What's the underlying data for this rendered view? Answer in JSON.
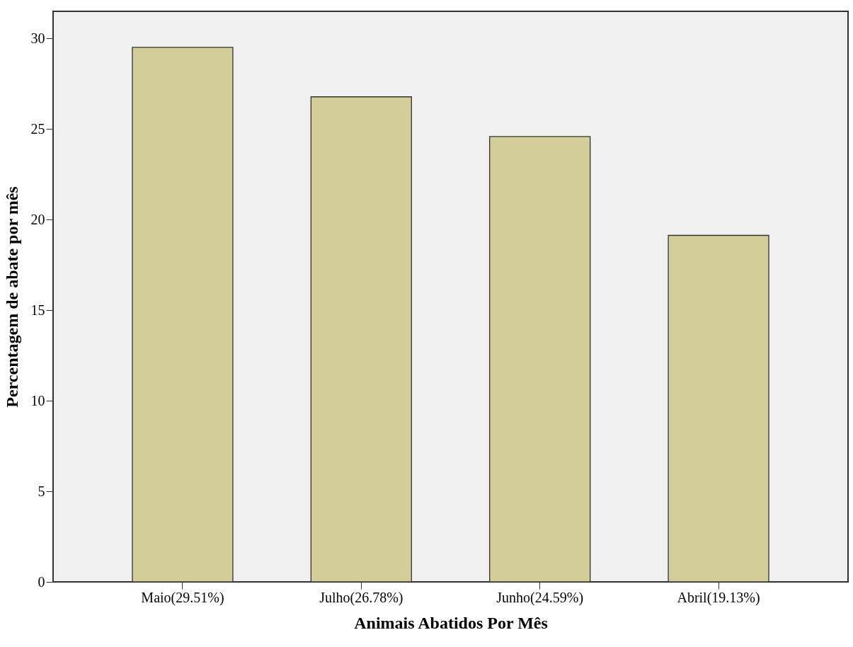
{
  "chart_data": {
    "type": "bar",
    "xlabel": "Animais Abatidos Por Mês",
    "ylabel": "Percentagem de abate por mês",
    "categories": [
      "Maio(29.51%)",
      "Julho(26.78%)",
      "Junho(24.59%)",
      "Abril(19.13%)"
    ],
    "values": [
      29.51,
      26.78,
      24.59,
      19.13
    ],
    "color": "#d3ce97",
    "ylim": [
      0,
      31.5
    ],
    "yticks": [
      0,
      5,
      10,
      15,
      20,
      25,
      30
    ],
    "grid": false
  }
}
